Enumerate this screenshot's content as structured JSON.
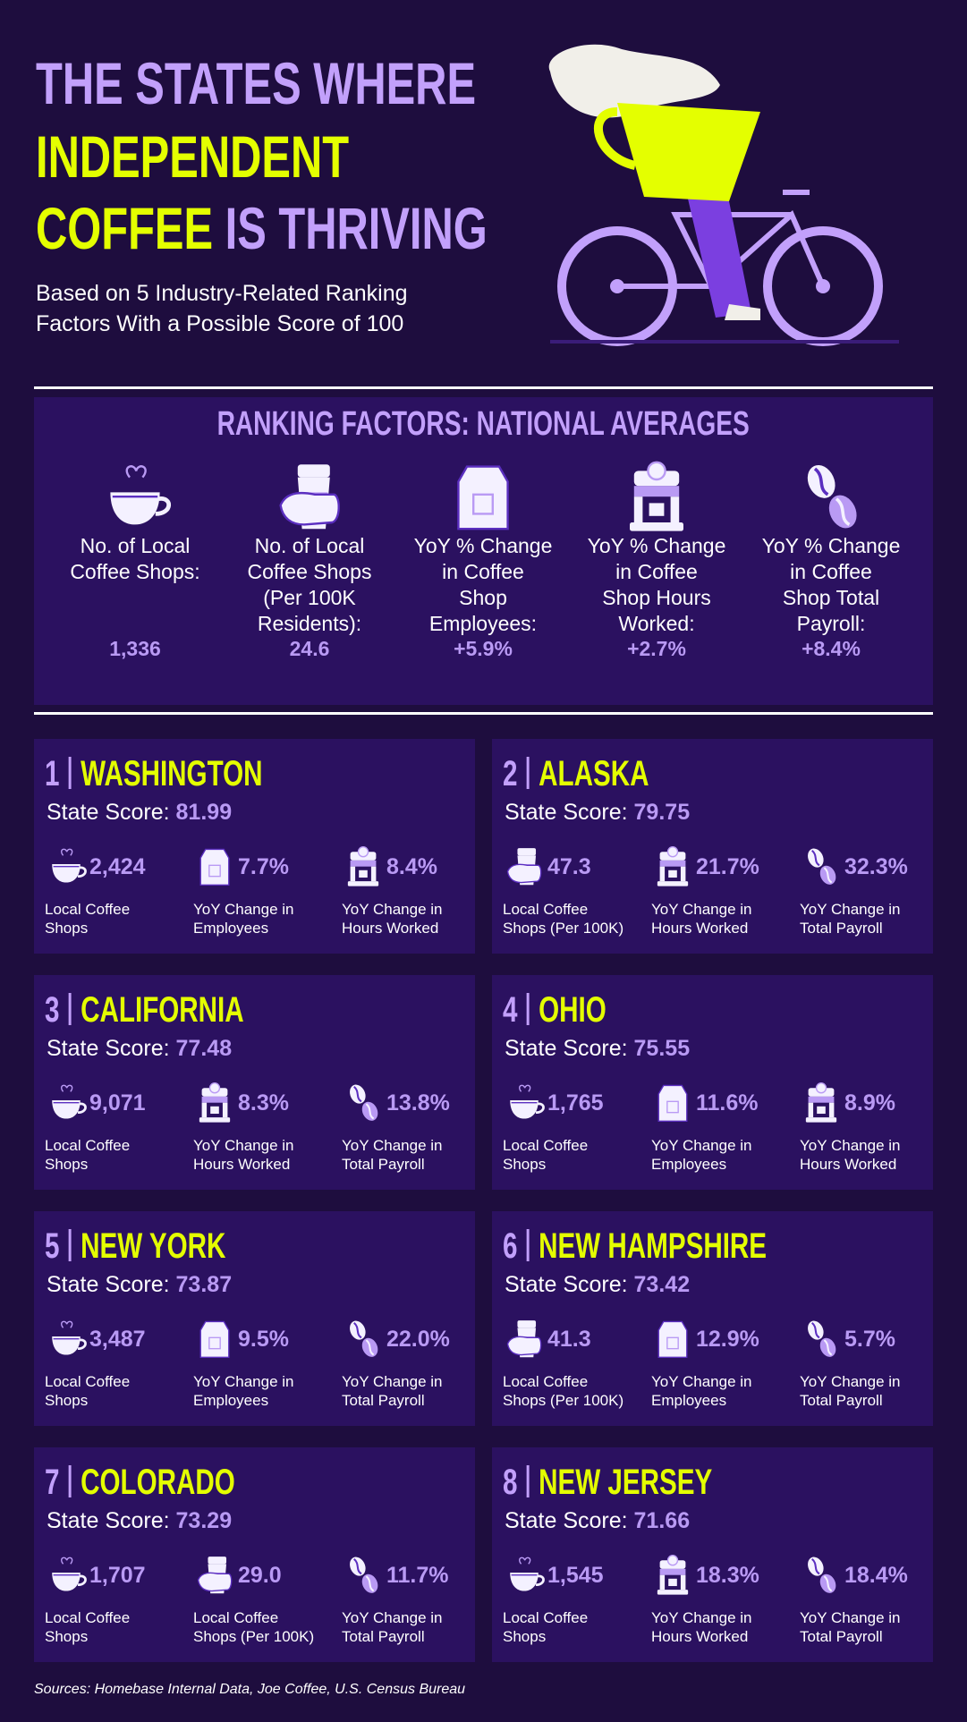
{
  "header": {
    "title": [
      [
        {
          "text": "THE STATES WHERE",
          "color": "#c2a0fb"
        }
      ],
      [
        {
          "text": "INDEPENDENT",
          "color": "#e4ff00"
        }
      ],
      [
        {
          "text": "COFFEE",
          "color": "#e4ff00"
        },
        {
          "text": "IS THRIVING",
          "color": "#c2a0fb"
        }
      ]
    ],
    "subtitle": [
      "Based on 5 Industry-Related Ranking",
      "Factors With a Possible Score of 100"
    ]
  },
  "national": {
    "heading": "RANKING FACTORS: NATIONAL AVERAGES",
    "factors": [
      {
        "icon": "cup",
        "label": [
          "No. of Local",
          "Coffee Shops:"
        ],
        "value": "1,336"
      },
      {
        "icon": "hand",
        "label": [
          "No. of Local",
          "Coffee Shops",
          "(Per 100K",
          "Residents):"
        ],
        "value": "24.6"
      },
      {
        "icon": "bag",
        "label": [
          "YoY % Change",
          "in Coffee",
          "Shop",
          "Employees:"
        ],
        "value": "+5.9%"
      },
      {
        "icon": "machine",
        "label": [
          "YoY % Change",
          "in Coffee",
          "Shop Hours",
          "Worked:"
        ],
        "value": "+2.7%"
      },
      {
        "icon": "beans",
        "label": [
          "YoY % Change",
          "in Coffee",
          "Shop Total",
          "Payroll:"
        ],
        "value": "+8.4%"
      }
    ]
  },
  "states": [
    {
      "rank": 1,
      "name": "WASHINGTON",
      "score_label": "State Score:",
      "score": 81.99,
      "stats": [
        {
          "icon": "cup",
          "value": "2,424",
          "label": [
            "Local Coffee",
            "Shops"
          ]
        },
        {
          "icon": "bag",
          "value": "7.7%",
          "label": [
            "YoY Change in",
            "Employees"
          ]
        },
        {
          "icon": "machine",
          "value": "8.4%",
          "label": [
            "YoY Change in",
            "Hours Worked"
          ]
        }
      ]
    },
    {
      "rank": 2,
      "name": "ALASKA",
      "score_label": "State Score:",
      "score": 79.75,
      "stats": [
        {
          "icon": "hand",
          "value": "47.3",
          "label": [
            "Local Coffee",
            "Shops (Per 100K)"
          ]
        },
        {
          "icon": "machine",
          "value": "21.7%",
          "label": [
            "YoY Change in",
            "Hours Worked"
          ]
        },
        {
          "icon": "beans",
          "value": "32.3%",
          "label": [
            "YoY Change in",
            "Total Payroll"
          ]
        }
      ]
    },
    {
      "rank": 3,
      "name": "CALIFORNIA",
      "score_label": "State Score:",
      "score": 77.48,
      "stats": [
        {
          "icon": "cup",
          "value": "9,071",
          "label": [
            "Local Coffee",
            "Shops"
          ]
        },
        {
          "icon": "machine",
          "value": "8.3%",
          "label": [
            "YoY Change in",
            "Hours Worked"
          ]
        },
        {
          "icon": "beans",
          "value": "13.8%",
          "label": [
            "YoY Change in",
            "Total Payroll"
          ]
        }
      ]
    },
    {
      "rank": 4,
      "name": "OHIO",
      "score_label": "State Score:",
      "score": 75.55,
      "stats": [
        {
          "icon": "cup",
          "value": "1,765",
          "label": [
            "Local Coffee",
            "Shops"
          ]
        },
        {
          "icon": "bag",
          "value": "11.6%",
          "label": [
            "YoY Change in",
            "Employees"
          ]
        },
        {
          "icon": "machine",
          "value": "8.9%",
          "label": [
            "YoY Change in",
            "Hours Worked"
          ]
        }
      ]
    },
    {
      "rank": 5,
      "name": "NEW YORK",
      "score_label": "State Score:",
      "score": 73.87,
      "stats": [
        {
          "icon": "cup",
          "value": "3,487",
          "label": [
            "Local Coffee",
            "Shops"
          ]
        },
        {
          "icon": "bag",
          "value": "9.5%",
          "label": [
            "YoY Change in",
            "Employees"
          ]
        },
        {
          "icon": "beans",
          "value": "22.0%",
          "label": [
            "YoY Change in",
            "Total Payroll"
          ]
        }
      ]
    },
    {
      "rank": 6,
      "name": "NEW HAMPSHIRE",
      "score_label": "State Score:",
      "score": 73.42,
      "stats": [
        {
          "icon": "hand",
          "value": "41.3",
          "label": [
            "Local Coffee",
            "Shops (Per 100K)"
          ]
        },
        {
          "icon": "bag",
          "value": "12.9%",
          "label": [
            "YoY Change in",
            "Employees"
          ]
        },
        {
          "icon": "beans",
          "value": "5.7%",
          "label": [
            "YoY Change in",
            "Total Payroll"
          ]
        }
      ]
    },
    {
      "rank": 7,
      "name": "COLORADO",
      "score_label": "State Score:",
      "score": 73.29,
      "stats": [
        {
          "icon": "cup",
          "value": "1,707",
          "label": [
            "Local Coffee",
            "Shops"
          ]
        },
        {
          "icon": "hand",
          "value": "29.0",
          "label": [
            "Local Coffee",
            "Shops (Per 100K)"
          ]
        },
        {
          "icon": "beans",
          "value": "11.7%",
          "label": [
            "YoY Change in",
            "Total Payroll"
          ]
        }
      ]
    },
    {
      "rank": 8,
      "name": "NEW JERSEY",
      "score_label": "State Score:",
      "score": 71.66,
      "stats": [
        {
          "icon": "cup",
          "value": "1,545",
          "label": [
            "Local Coffee",
            "Shops"
          ]
        },
        {
          "icon": "machine",
          "value": "18.3%",
          "label": [
            "YoY Change in",
            "Hours Worked"
          ]
        },
        {
          "icon": "beans",
          "value": "18.4%",
          "label": [
            "YoY Change in",
            "Total Payroll"
          ]
        }
      ]
    }
  ],
  "sources": "Sources: Homebase Internal Data, Joe Coffee, U.S. Census Bureau"
}
